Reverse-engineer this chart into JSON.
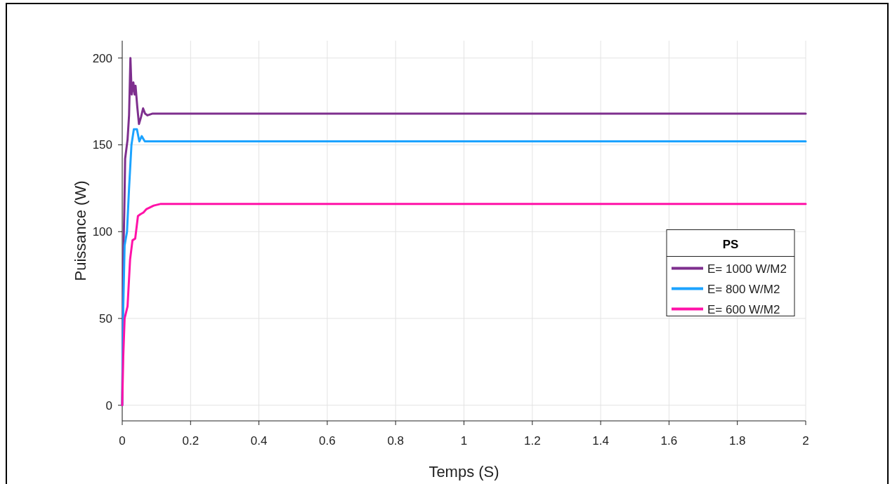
{
  "chart_data": {
    "type": "line",
    "xlabel": "Temps (S)",
    "ylabel": "Puissance (W)",
    "legend_title": "PS",
    "legend": "right",
    "grid": true,
    "line_style": "solid",
    "xlim": [
      0,
      2
    ],
    "ylim": [
      -9,
      210
    ],
    "xticks": [
      0,
      0.2,
      0.4,
      0.6,
      0.8,
      1,
      1.2,
      1.4,
      1.6,
      1.8,
      2
    ],
    "yticks": [
      0,
      50,
      100,
      150,
      200
    ],
    "series": [
      {
        "name": "E= 1000 W/M2",
        "color": "#7e2f8e",
        "x": [
          0,
          0.003,
          0.006,
          0.0085,
          0.0156,
          0.02,
          0.024,
          0.0277,
          0.0326,
          0.036,
          0.039,
          0.044,
          0.049,
          0.055,
          0.061,
          0.067,
          0.074,
          0.089,
          2
        ],
        "values": [
          0,
          84,
          111,
          142,
          153,
          167,
          200,
          179,
          186,
          179,
          184,
          172,
          162,
          166,
          171,
          168,
          167,
          168,
          168
        ]
      },
      {
        "name": "E= 800 W/M2",
        "color": "#1ca3ff",
        "x": [
          0,
          0.003,
          0.007,
          0.014,
          0.02,
          0.027,
          0.034,
          0.043,
          0.05,
          0.057,
          0.066,
          0.074,
          0.089,
          2
        ],
        "values": [
          0,
          56,
          92,
          100,
          125,
          150,
          159,
          159,
          152,
          155,
          152,
          152,
          152,
          152
        ]
      },
      {
        "name": "E= 600 W/M2",
        "color": "#ff12a8",
        "x": [
          0,
          0.003,
          0.007,
          0.0156,
          0.023,
          0.03,
          0.038,
          0.046,
          0.053,
          0.062,
          0.071,
          0.092,
          0.113,
          2
        ],
        "values": [
          0,
          28,
          50,
          57,
          84,
          95,
          96,
          109,
          110,
          111,
          113,
          115,
          116,
          116
        ]
      }
    ]
  }
}
